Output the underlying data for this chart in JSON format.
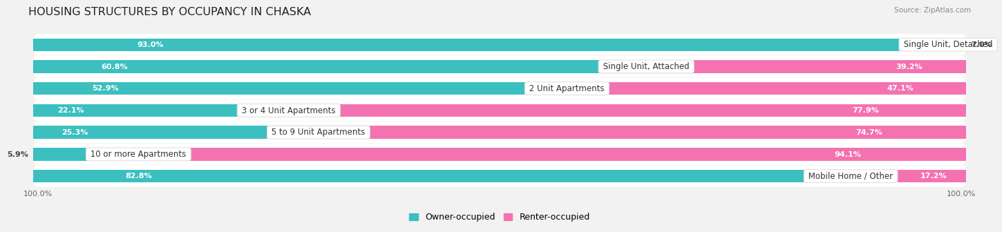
{
  "title": "HOUSING STRUCTURES BY OCCUPANCY IN CHASKA",
  "source": "Source: ZipAtlas.com",
  "categories": [
    "Single Unit, Detached",
    "Single Unit, Attached",
    "2 Unit Apartments",
    "3 or 4 Unit Apartments",
    "5 to 9 Unit Apartments",
    "10 or more Apartments",
    "Mobile Home / Other"
  ],
  "owner_pct": [
    93.0,
    60.8,
    52.9,
    22.1,
    25.3,
    5.9,
    82.8
  ],
  "renter_pct": [
    7.0,
    39.2,
    47.1,
    77.9,
    74.7,
    94.1,
    17.2
  ],
  "owner_color": "#3bbfbf",
  "renter_color": "#f472b0",
  "renter_color_large": "#f060a0",
  "background_color": "#f2f2f2",
  "row_bg_color": "#ffffff",
  "title_fontsize": 11.5,
  "label_fontsize": 8.5,
  "pct_fontsize": 8.0,
  "legend_fontsize": 9,
  "bar_height": 0.58,
  "figsize": [
    14.06,
    3.41
  ]
}
